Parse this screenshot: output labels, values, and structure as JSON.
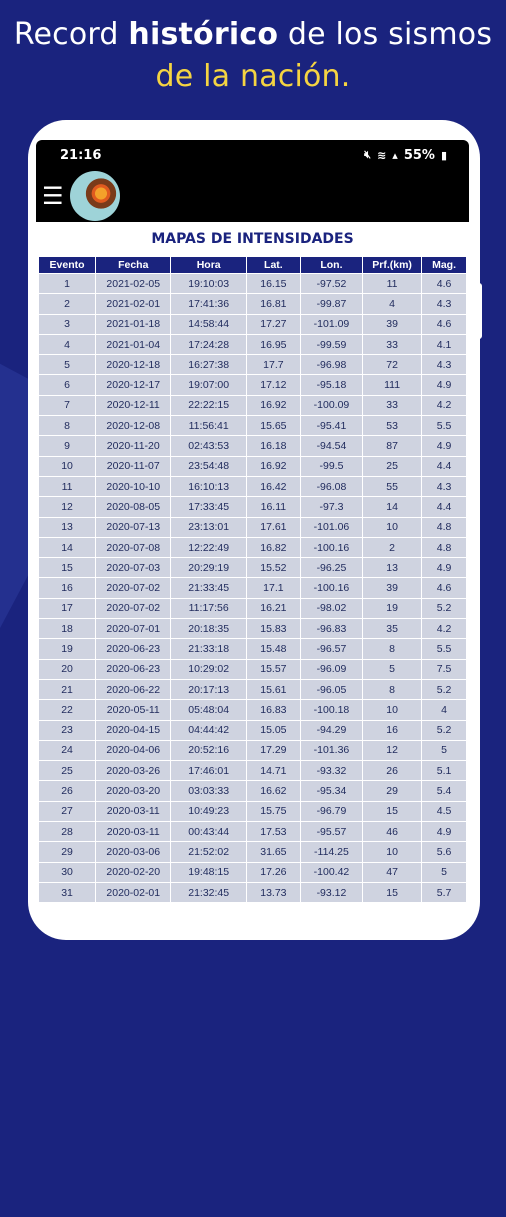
{
  "headline": {
    "line1_pre": "Record ",
    "line1_bold": "histórico",
    "line1_post": " de los sismos",
    "line2": "de la nación."
  },
  "statusbar": {
    "time": "21:16",
    "battery": "55%",
    "icons": [
      "mute-icon",
      "wifi-icon",
      "signal-icon",
      "battery-icon"
    ]
  },
  "appbar": {
    "menu_icon": "hamburger-menu-icon",
    "logo": "earth-layers-logo"
  },
  "section_title": "MAPAS DE INTENSIDADES",
  "table": {
    "headers": [
      "Evento",
      "Fecha",
      "Hora",
      "Lat.",
      "Lon.",
      "Prf.(km)",
      "Mag."
    ],
    "rows": [
      [
        "1",
        "2021-02-05",
        "19:10:03",
        "16.15",
        "-97.52",
        "11",
        "4.6"
      ],
      [
        "2",
        "2021-02-01",
        "17:41:36",
        "16.81",
        "-99.87",
        "4",
        "4.3"
      ],
      [
        "3",
        "2021-01-18",
        "14:58:44",
        "17.27",
        "-101.09",
        "39",
        "4.6"
      ],
      [
        "4",
        "2021-01-04",
        "17:24:28",
        "16.95",
        "-99.59",
        "33",
        "4.1"
      ],
      [
        "5",
        "2020-12-18",
        "16:27:38",
        "17.7",
        "-96.98",
        "72",
        "4.3"
      ],
      [
        "6",
        "2020-12-17",
        "19:07:00",
        "17.12",
        "-95.18",
        "111",
        "4.9"
      ],
      [
        "7",
        "2020-12-11",
        "22:22:15",
        "16.92",
        "-100.09",
        "33",
        "4.2"
      ],
      [
        "8",
        "2020-12-08",
        "11:56:41",
        "15.65",
        "-95.41",
        "53",
        "5.5"
      ],
      [
        "9",
        "2020-11-20",
        "02:43:53",
        "16.18",
        "-94.54",
        "87",
        "4.9"
      ],
      [
        "10",
        "2020-11-07",
        "23:54:48",
        "16.92",
        "-99.5",
        "25",
        "4.4"
      ],
      [
        "11",
        "2020-10-10",
        "16:10:13",
        "16.42",
        "-96.08",
        "55",
        "4.3"
      ],
      [
        "12",
        "2020-08-05",
        "17:33:45",
        "16.11",
        "-97.3",
        "14",
        "4.4"
      ],
      [
        "13",
        "2020-07-13",
        "23:13:01",
        "17.61",
        "-101.06",
        "10",
        "4.8"
      ],
      [
        "14",
        "2020-07-08",
        "12:22:49",
        "16.82",
        "-100.16",
        "2",
        "4.8"
      ],
      [
        "15",
        "2020-07-03",
        "20:29:19",
        "15.52",
        "-96.25",
        "13",
        "4.9"
      ],
      [
        "16",
        "2020-07-02",
        "21:33:45",
        "17.1",
        "-100.16",
        "39",
        "4.6"
      ],
      [
        "17",
        "2020-07-02",
        "11:17:56",
        "16.21",
        "-98.02",
        "19",
        "5.2"
      ],
      [
        "18",
        "2020-07-01",
        "20:18:35",
        "15.83",
        "-96.83",
        "35",
        "4.2"
      ],
      [
        "19",
        "2020-06-23",
        "21:33:18",
        "15.48",
        "-96.57",
        "8",
        "5.5"
      ],
      [
        "20",
        "2020-06-23",
        "10:29:02",
        "15.57",
        "-96.09",
        "5",
        "7.5"
      ],
      [
        "21",
        "2020-06-22",
        "20:17:13",
        "15.61",
        "-96.05",
        "8",
        "5.2"
      ],
      [
        "22",
        "2020-05-11",
        "05:48:04",
        "16.83",
        "-100.18",
        "10",
        "4"
      ],
      [
        "23",
        "2020-04-15",
        "04:44:42",
        "15.05",
        "-94.29",
        "16",
        "5.2"
      ],
      [
        "24",
        "2020-04-06",
        "20:52:16",
        "17.29",
        "-101.36",
        "12",
        "5"
      ],
      [
        "25",
        "2020-03-26",
        "17:46:01",
        "14.71",
        "-93.32",
        "26",
        "5.1"
      ],
      [
        "26",
        "2020-03-20",
        "03:03:33",
        "16.62",
        "-95.34",
        "29",
        "5.4"
      ],
      [
        "27",
        "2020-03-11",
        "10:49:23",
        "15.75",
        "-96.79",
        "15",
        "4.5"
      ],
      [
        "28",
        "2020-03-11",
        "00:43:44",
        "17.53",
        "-95.57",
        "46",
        "4.9"
      ],
      [
        "29",
        "2020-03-06",
        "21:52:02",
        "31.65",
        "-114.25",
        "10",
        "5.6"
      ],
      [
        "30",
        "2020-02-20",
        "19:48:15",
        "17.26",
        "-100.42",
        "47",
        "5"
      ],
      [
        "31",
        "2020-02-01",
        "21:32:45",
        "13.73",
        "-93.12",
        "15",
        "5.7"
      ]
    ]
  }
}
